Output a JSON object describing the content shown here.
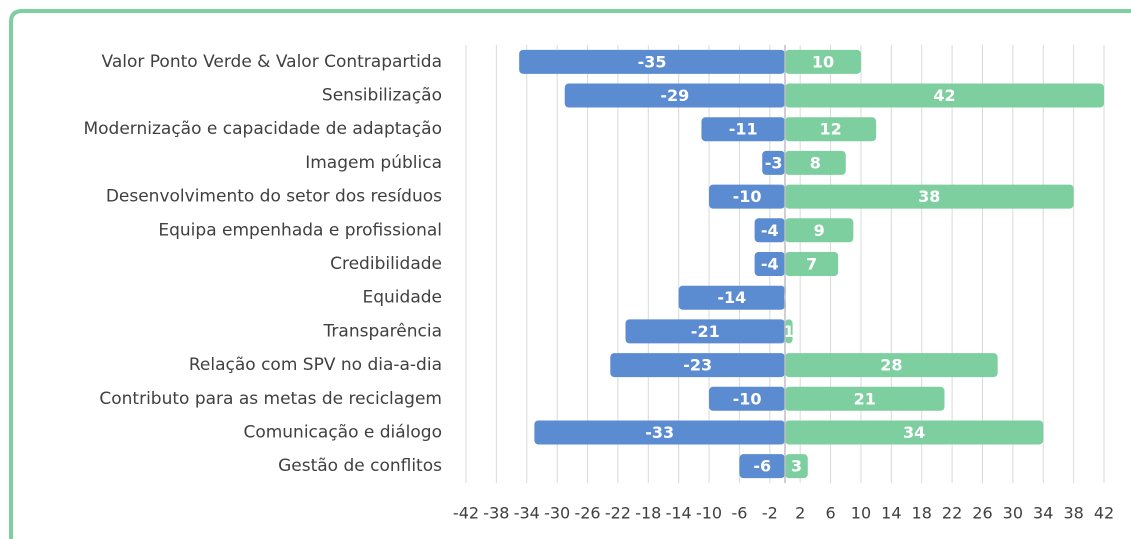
{
  "chart_data": {
    "type": "diverging-bar",
    "categories": [
      "Valor Ponto Verde & Valor Contrapartida",
      "Sensibilização",
      "Modernização e capacidade de adaptação",
      "Imagem pública",
      "Desenvolvimento do setor dos resíduos",
      "Equipa empenhada e profissional",
      "Credibilidade",
      "Equidade",
      "Transparência",
      "Relação com SPV no dia-a-dia",
      "Contributo para as metas de reciclagem",
      "Comunicação e diálogo",
      "Gestão de conflitos"
    ],
    "series": [
      {
        "color": "#5b8bd0",
        "values": [
          -35,
          -29,
          -11,
          -3,
          -10,
          -4,
          -4,
          -14,
          -21,
          -23,
          -10,
          -33,
          -6
        ]
      },
      {
        "color": "#7dcf9f",
        "values": [
          10,
          42,
          12,
          8,
          38,
          9,
          7,
          0,
          1,
          28,
          21,
          34,
          3
        ]
      }
    ],
    "xlim": [
      -42,
      42
    ],
    "xticks": [
      -42,
      -38,
      -34,
      -30,
      -26,
      -22,
      -18,
      -14,
      -10,
      -6,
      -2,
      2,
      6,
      10,
      14,
      18,
      22,
      26,
      30,
      34,
      38,
      42
    ],
    "grid": true
  }
}
